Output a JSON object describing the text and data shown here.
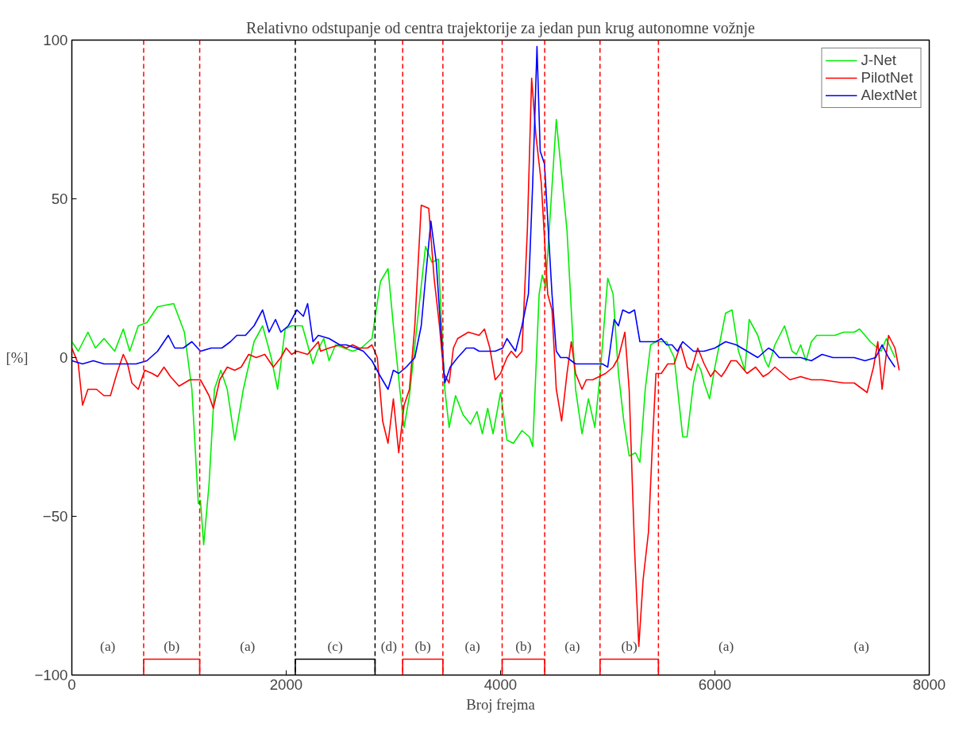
{
  "chart_data": {
    "type": "line",
    "title": "Relativno odstupanje od centra trajektorije za jedan pun krug autonomne vožnje",
    "xlabel": "Broj frejma",
    "ylabel": "[%]",
    "xlim": [
      0,
      8000
    ],
    "ylim": [
      -100,
      100
    ],
    "xticks": [
      0,
      2000,
      4000,
      6000,
      8000
    ],
    "yticks": [
      -100,
      -50,
      0,
      50,
      100
    ],
    "grid": false,
    "legend": "top right",
    "line_style": "solid",
    "marker": "none",
    "series": [
      {
        "name": "J-Net",
        "color": "#00ee00",
        "x": [
          0,
          60,
          150,
          220,
          300,
          400,
          480,
          540,
          620,
          700,
          800,
          950,
          1050,
          1120,
          1180,
          1200,
          1230,
          1280,
          1330,
          1390,
          1450,
          1520,
          1600,
          1700,
          1780,
          1860,
          1920,
          1990,
          2050,
          2150,
          2250,
          2290,
          2350,
          2400,
          2460,
          2540,
          2620,
          2700,
          2800,
          2880,
          2950,
          3000,
          3060,
          3100,
          3150,
          3220,
          3300,
          3360,
          3420,
          3480,
          3520,
          3580,
          3650,
          3720,
          3780,
          3830,
          3880,
          3930,
          4000,
          4060,
          4120,
          4200,
          4270,
          4300,
          4360,
          4390,
          4420,
          4520,
          4620,
          4700,
          4760,
          4820,
          4880,
          4930,
          5000,
          5050,
          5100,
          5150,
          5200,
          5260,
          5300,
          5350,
          5400,
          5450,
          5550,
          5620,
          5700,
          5740,
          5800,
          5840,
          5870,
          5900,
          5950,
          6000,
          6100,
          6160,
          6220,
          6280,
          6320,
          6400,
          6470,
          6500,
          6560,
          6650,
          6720,
          6760,
          6800,
          6850,
          6900,
          6950,
          7050,
          7120,
          7200,
          7300,
          7350,
          7400,
          7450,
          7550,
          7600,
          7680
        ],
        "values": [
          5,
          2,
          8,
          3,
          6,
          2,
          9,
          2,
          10,
          11,
          16,
          17,
          8,
          -10,
          -46,
          -45,
          -59,
          -40,
          -10,
          -4,
          -10,
          -26,
          -10,
          5,
          10,
          0,
          -10,
          9,
          10,
          10,
          -2,
          2,
          6,
          -1,
          4,
          3,
          2,
          3,
          6,
          24,
          28,
          10,
          -10,
          -22,
          -12,
          10,
          35,
          30,
          31,
          -10,
          -22,
          -12,
          -18,
          -21,
          -17,
          -24,
          -16,
          -24,
          -11,
          -26,
          -27,
          -23,
          -25,
          -28,
          20,
          26,
          22,
          75,
          40,
          -10,
          -24,
          -13,
          -22,
          -5,
          25,
          20,
          -5,
          -20,
          -31,
          -30,
          -33,
          -10,
          4,
          5,
          5,
          0,
          -25,
          -25,
          -8,
          -2,
          -4,
          -8,
          -13,
          -3,
          14,
          15,
          2,
          -4,
          12,
          7,
          -1,
          -3,
          4,
          10,
          2,
          1,
          4,
          -1,
          5,
          7,
          7,
          7,
          8,
          8,
          9,
          7,
          5,
          2,
          6,
          0
        ]
      },
      {
        "name": "PilotNet",
        "color": "#ff0000",
        "x": [
          0,
          60,
          100,
          150,
          230,
          300,
          360,
          420,
          480,
          520,
          560,
          620,
          680,
          750,
          800,
          860,
          920,
          1000,
          1100,
          1200,
          1280,
          1320,
          1380,
          1450,
          1520,
          1580,
          1650,
          1720,
          1800,
          1880,
          1950,
          2000,
          2050,
          2100,
          2200,
          2300,
          2320,
          2400,
          2500,
          2560,
          2620,
          2680,
          2760,
          2800,
          2850,
          2900,
          2950,
          3000,
          3050,
          3100,
          3150,
          3200,
          3260,
          3330,
          3380,
          3430,
          3470,
          3520,
          3560,
          3600,
          3700,
          3800,
          3850,
          3900,
          3950,
          4000,
          4060,
          4100,
          4150,
          4200,
          4250,
          4290,
          4330,
          4380,
          4440,
          4480,
          4520,
          4570,
          4620,
          4660,
          4700,
          4760,
          4800,
          4860,
          4920,
          4980,
          5050,
          5100,
          5160,
          5200,
          5250,
          5290,
          5330,
          5380,
          5420,
          5450,
          5500,
          5560,
          5620,
          5680,
          5740,
          5780,
          5840,
          5900,
          5960,
          6000,
          6060,
          6100,
          6150,
          6200,
          6250,
          6300,
          6380,
          6450,
          6500,
          6560,
          6630,
          6700,
          6800,
          6900,
          7000,
          7200,
          7300,
          7420,
          7480,
          7520,
          7560,
          7620,
          7680,
          7720
        ],
        "values": [
          3,
          -2,
          -15,
          -10,
          -10,
          -12,
          -12,
          -5,
          1,
          -2,
          -8,
          -10,
          -4,
          -5,
          -6,
          -3,
          -6,
          -9,
          -7,
          -7,
          -12,
          -16,
          -7,
          -3,
          -4,
          -3,
          1,
          0,
          1,
          -3,
          0,
          3,
          1,
          2,
          1,
          5,
          2,
          3,
          4,
          3,
          4,
          3,
          3,
          4,
          0,
          -20,
          -27,
          -13,
          -30,
          -15,
          -10,
          10,
          48,
          47,
          25,
          10,
          -5,
          -8,
          3,
          6,
          8,
          7,
          9,
          3,
          -7,
          -5,
          0,
          2,
          0,
          2,
          40,
          88,
          70,
          55,
          20,
          15,
          -10,
          -20,
          -5,
          5,
          -5,
          -10,
          -7,
          -7,
          -6,
          -5,
          -3,
          0,
          8,
          -10,
          -60,
          -91,
          -70,
          -55,
          -25,
          -5,
          -5,
          -2,
          -2,
          4,
          -3,
          -4,
          3,
          -2,
          -6,
          -4,
          -6,
          -4,
          -1,
          -1,
          -3,
          -5,
          -3,
          -6,
          -5,
          -3,
          -5,
          -7,
          -6,
          -7,
          -7,
          -8,
          -8,
          -11,
          -3,
          5,
          -10,
          7,
          3,
          -4
        ]
      },
      {
        "name": "AlextNet",
        "color": "#0000ff",
        "x": [
          0,
          100,
          200,
          300,
          400,
          500,
          600,
          700,
          800,
          900,
          960,
          1040,
          1120,
          1200,
          1300,
          1400,
          1480,
          1540,
          1620,
          1700,
          1780,
          1840,
          1900,
          1950,
          2020,
          2100,
          2160,
          2200,
          2250,
          2300,
          2400,
          2500,
          2560,
          2650,
          2720,
          2800,
          2880,
          2950,
          3000,
          3050,
          3120,
          3200,
          3260,
          3300,
          3350,
          3400,
          3440,
          3480,
          3530,
          3600,
          3680,
          3750,
          3800,
          3880,
          3950,
          4020,
          4060,
          4100,
          4140,
          4200,
          4260,
          4300,
          4340,
          4370,
          4410,
          4480,
          4520,
          4560,
          4620,
          4700,
          4800,
          4900,
          4950,
          5000,
          5060,
          5100,
          5140,
          5200,
          5250,
          5300,
          5350,
          5450,
          5500,
          5550,
          5600,
          5650,
          5700,
          5800,
          5850,
          5900,
          6000,
          6100,
          6200,
          6300,
          6400,
          6500,
          6550,
          6600,
          6700,
          6800,
          6900,
          7000,
          7100,
          7200,
          7300,
          7400,
          7500,
          7560,
          7620,
          7680
        ],
        "values": [
          -1,
          -2,
          -1,
          -2,
          -2,
          -2,
          -2,
          -1,
          2,
          7,
          3,
          3,
          5,
          2,
          3,
          3,
          5,
          7,
          7,
          10,
          15,
          8,
          12,
          8,
          10,
          15,
          13,
          17,
          5,
          7,
          6,
          4,
          4,
          3,
          2,
          -1,
          -6,
          -10,
          -4,
          -5,
          -3,
          0,
          10,
          25,
          43,
          30,
          10,
          -8,
          -3,
          0,
          3,
          3,
          2,
          2,
          2,
          3,
          6,
          4,
          2,
          10,
          20,
          55,
          98,
          65,
          61,
          20,
          2,
          0,
          0,
          -2,
          -2,
          -2,
          -2,
          -3,
          12,
          10,
          15,
          14,
          15,
          5,
          5,
          5,
          6,
          4,
          4,
          2,
          5,
          2,
          2,
          2,
          3,
          5,
          4,
          2,
          0,
          3,
          2,
          0,
          0,
          0,
          -1,
          1,
          0,
          0,
          0,
          -1,
          0,
          4,
          0,
          -3
        ]
      },
      {
        "color": "#ff0000",
        "x": [
          670,
          670,
          1193,
          1193
        ],
        "values": [
          -100,
          -95,
          -95,
          -100
        ]
      },
      {
        "color": "#000000",
        "x": [
          2085,
          2085,
          2829,
          2829
        ],
        "values": [
          -100,
          -95,
          -95,
          -100
        ]
      },
      {
        "color": "#ff0000",
        "x": [
          3087,
          3087,
          3462,
          3462
        ],
        "values": [
          -100,
          -95,
          -95,
          -100
        ]
      },
      {
        "color": "#ff0000",
        "x": [
          4015,
          4015,
          4412,
          4412
        ],
        "values": [
          -100,
          -95,
          -95,
          -100
        ]
      },
      {
        "color": "#ff0000",
        "x": [
          4928,
          4928,
          5473,
          5473
        ],
        "values": [
          -100,
          -95,
          -95,
          -100
        ]
      }
    ],
    "ref_lines": [
      {
        "axis": "x",
        "value": 670,
        "color": "#ff0000",
        "line_style": "dashed"
      },
      {
        "axis": "x",
        "value": 1193,
        "color": "#ff0000",
        "line_style": "dashed"
      },
      {
        "axis": "x",
        "value": 2085,
        "color": "#000000",
        "line_style": "dashed"
      },
      {
        "axis": "x",
        "value": 2829,
        "color": "#000000",
        "line_style": "dashed"
      },
      {
        "axis": "x",
        "value": 3087,
        "color": "#ff0000",
        "line_style": "dashed"
      },
      {
        "axis": "x",
        "value": 3462,
        "color": "#ff0000",
        "line_style": "dashed"
      },
      {
        "axis": "x",
        "value": 4015,
        "color": "#ff0000",
        "line_style": "dashed"
      },
      {
        "axis": "x",
        "value": 4412,
        "color": "#ff0000",
        "line_style": "dashed"
      },
      {
        "axis": "x",
        "value": 4928,
        "color": "#ff0000",
        "line_style": "dashed"
      },
      {
        "axis": "x",
        "value": 5473,
        "color": "#ff0000",
        "line_style": "dashed"
      }
    ],
    "annotations": [
      "(a)",
      "(b)",
      "(a)",
      "(c)",
      "(d)",
      "(b)",
      "(a)",
      "(b)",
      "(a)",
      "(b)",
      "(a)",
      "(a)"
    ]
  }
}
